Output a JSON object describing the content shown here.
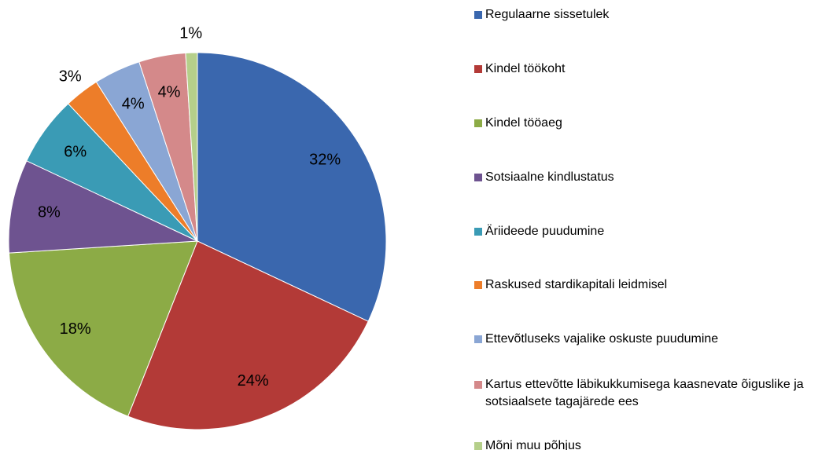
{
  "chart_data": {
    "type": "pie",
    "categories": [
      "Regulaarne sissetulek",
      "Kindel töökoht",
      "Kindel tööaeg",
      "Sotsiaalne kindlustatus",
      "Äriideede puudumine",
      "Raskused stardikapitali leidmisel",
      "Ettevõtluseks vajalike oskuste puudumine",
      "Kartus ettevõtte läbikukkumisega kaasnevate õiguslike ja sotsiaalsete tagajärede ees",
      "Mõni muu põhjus"
    ],
    "values": [
      32,
      24,
      18,
      8,
      6,
      3,
      4,
      4,
      1
    ],
    "value_labels": [
      "32%",
      "24%",
      "18%",
      "8%",
      "6%",
      "3%",
      "4%",
      "4%",
      "1%"
    ],
    "colors": [
      "#3a67ae",
      "#b33a37",
      "#8cab46",
      "#6e5390",
      "#3a9bb5",
      "#ed7d29",
      "#8aa6d4",
      "#d4898a",
      "#b5cf8a"
    ]
  }
}
